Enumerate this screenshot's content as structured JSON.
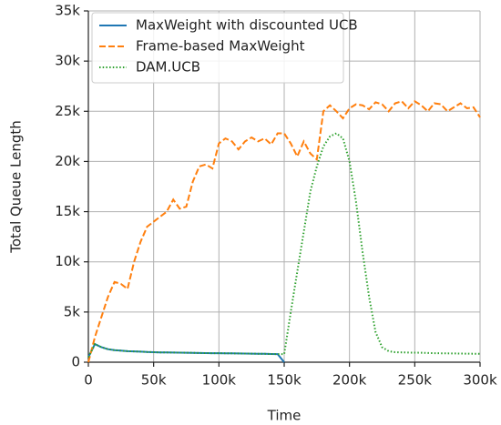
{
  "chart_data": {
    "type": "line",
    "xlabel": "Time",
    "ylabel": "Total Queue Length",
    "x": [
      0,
      5000,
      10000,
      15000,
      20000,
      25000,
      30000,
      35000,
      40000,
      45000,
      50000,
      55000,
      60000,
      65000,
      70000,
      75000,
      80000,
      85000,
      90000,
      95000,
      100000,
      105000,
      110000,
      115000,
      120000,
      125000,
      130000,
      135000,
      140000,
      145000,
      150000,
      155000,
      160000,
      165000,
      170000,
      175000,
      180000,
      185000,
      190000,
      195000,
      200000,
      205000,
      210000,
      215000,
      220000,
      225000,
      230000,
      235000,
      240000,
      245000,
      250000,
      255000,
      260000,
      265000,
      270000,
      275000,
      280000,
      285000,
      290000,
      295000,
      300000
    ],
    "series": [
      {
        "name": "MaxWeight with discounted UCB",
        "color": "#1f77b4",
        "style": "solid",
        "values": [
          500,
          1800,
          1500,
          1300,
          1200,
          1150,
          1100,
          1080,
          1050,
          1020,
          1000,
          980,
          970,
          960,
          950,
          940,
          930,
          920,
          910,
          900,
          900,
          890,
          880,
          870,
          860,
          850,
          840,
          830,
          820,
          810,
          0,
          null,
          null,
          null,
          null,
          null,
          null,
          null,
          null,
          null,
          null,
          null,
          null,
          null,
          null,
          null,
          null,
          null,
          null,
          null,
          null,
          null,
          null,
          null,
          null,
          null,
          null,
          null,
          null,
          null,
          null
        ]
      },
      {
        "name": "Frame-based MaxWeight",
        "color": "#ff7f0e",
        "style": "dashed",
        "values": [
          0,
          2500,
          4500,
          6500,
          8000,
          7800,
          7300,
          10000,
          12000,
          13500,
          14000,
          14500,
          15000,
          16200,
          15300,
          15500,
          18000,
          19500,
          19700,
          19300,
          21800,
          22300,
          22000,
          21200,
          22000,
          22400,
          22000,
          22300,
          21700,
          22800,
          22800,
          21800,
          20500,
          22000,
          20800,
          20200,
          25000,
          25600,
          25000,
          24300,
          25300,
          25700,
          25600,
          25200,
          25900,
          25700,
          25000,
          25800,
          26000,
          25300,
          26000,
          25600,
          25000,
          25800,
          25700,
          25000,
          25400,
          25800,
          25300,
          25400,
          24400
        ]
      },
      {
        "name": "DAM.UCB",
        "color": "#2ca02c",
        "style": "dotted",
        "values": [
          500,
          1800,
          1500,
          1300,
          1200,
          1150,
          1100,
          1080,
          1050,
          1020,
          1000,
          980,
          970,
          960,
          950,
          940,
          930,
          920,
          910,
          900,
          900,
          890,
          880,
          870,
          860,
          850,
          840,
          830,
          820,
          810,
          800,
          5000,
          9000,
          13000,
          17000,
          19500,
          21500,
          22500,
          22800,
          22300,
          20000,
          16000,
          11000,
          6500,
          3000,
          1500,
          1100,
          1000,
          980,
          960,
          950,
          940,
          920,
          900,
          890,
          880,
          870,
          860,
          850,
          840,
          830
        ]
      }
    ],
    "xlim": [
      0,
      300000
    ],
    "xticks": [
      0,
      {
        "value": 50000,
        "label": "50k"
      },
      {
        "value": 100000,
        "label": "100k"
      },
      {
        "value": 150000,
        "label": "150k"
      },
      {
        "value": 200000,
        "label": "200k"
      },
      {
        "value": 250000,
        "label": "250k"
      },
      {
        "value": 300000,
        "label": "300k"
      }
    ],
    "ylim": [
      0,
      35000
    ],
    "yticks": [
      0,
      {
        "value": 5000,
        "label": "5k"
      },
      {
        "value": 10000,
        "label": "10k"
      },
      {
        "value": 15000,
        "label": "15k"
      },
      {
        "value": 20000,
        "label": "20k"
      },
      {
        "value": 25000,
        "label": "25k"
      },
      {
        "value": 30000,
        "label": "30k"
      },
      {
        "value": 35000,
        "label": "35k"
      }
    ],
    "grid": true,
    "legend": "upper left"
  }
}
